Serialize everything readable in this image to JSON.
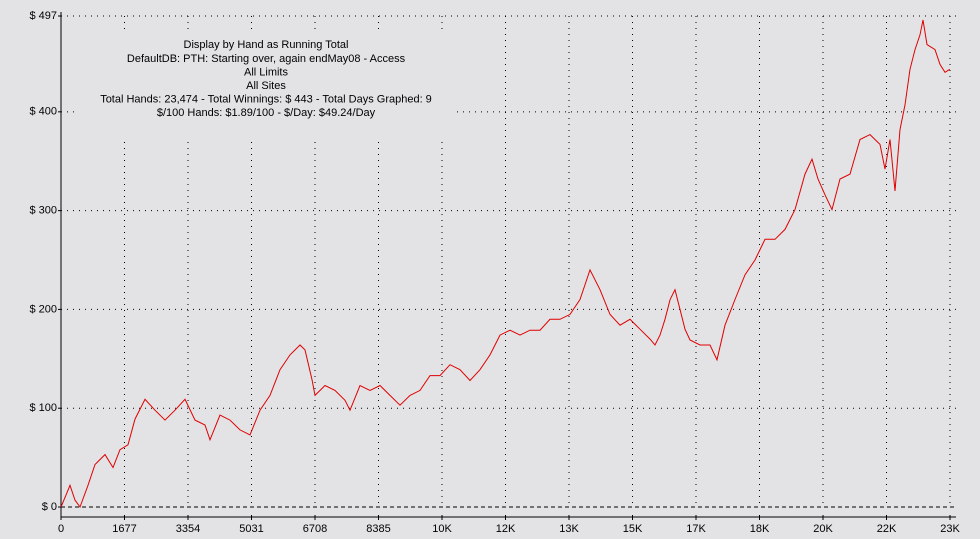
{
  "chart_data": {
    "type": "line",
    "title": "Display by Hand as Running Total",
    "annotations": [
      "DefaultDB: PTH: Starting over, again endMay08 - Access",
      "All Limits",
      "All Sites",
      "Total Hands: 23,474 - Total Winnings: $ 443 - Total Days Graphed: 9",
      "$/100 Hands: $1.89/100 - $/Day: $49.24/Day"
    ],
    "xlim": [
      0,
      23478
    ],
    "ylim": [
      0,
      497
    ],
    "xticks": [
      0,
      1677,
      3354,
      5031,
      6708,
      8385,
      {
        "value": 10062,
        "label": "10K"
      },
      {
        "value": 11739,
        "label": "12K"
      },
      {
        "value": 13416,
        "label": "13K"
      },
      {
        "value": 15093,
        "label": "15K"
      },
      {
        "value": 16770,
        "label": "17K"
      },
      {
        "value": 18447,
        "label": "18K"
      },
      {
        "value": 20124,
        "label": "20K"
      },
      {
        "value": 21801,
        "label": "22K"
      },
      {
        "value": 23478,
        "label": "23K"
      }
    ],
    "yticks": [
      {
        "value": 0,
        "label": "$ 0"
      },
      {
        "value": 100,
        "label": "$ 100"
      },
      {
        "value": 200,
        "label": "$ 200"
      },
      {
        "value": 300,
        "label": "$ 300"
      },
      {
        "value": 400,
        "label": "$ 400"
      },
      {
        "value": 497,
        "label": "$ 497"
      }
    ],
    "grid": true,
    "series": [
      {
        "color": "#e00000",
        "x": [
          0,
          132,
          238,
          370,
          502,
          713,
          898,
          1162,
          1373,
          1558,
          1769,
          1954,
          2218,
          2482,
          2747,
          3011,
          3275,
          3539,
          3803,
          3935,
          4199,
          4463,
          4727,
          4991,
          5256,
          5520,
          5784,
          6048,
          6312,
          6444,
          6629,
          6708,
          6972,
          7236,
          7500,
          7632,
          7896,
          8161,
          8425,
          8689,
          8953,
          9217,
          9481,
          9745,
          10009,
          10273,
          10537,
          10802,
          11066,
          11330,
          11594,
          11858,
          12122,
          12386,
          12650,
          12914,
          13178,
          13442,
          13707,
          13971,
          14235,
          14499,
          14763,
          15027,
          15291,
          15555,
          15687,
          15819,
          15951,
          16085,
          16215,
          16347,
          16479,
          16611,
          16875,
          17140,
          17325,
          17536,
          17800,
          18064,
          18328,
          18592,
          18856,
          19120,
          19385,
          19649,
          19834,
          19992,
          20177,
          20362,
          20573,
          20837,
          21101,
          21365,
          21630,
          21762,
          21894,
          22026,
          22158,
          22290,
          22422,
          22554,
          22686,
          22765,
          22871,
          23082,
          23214,
          23346,
          23474
        ],
        "values": [
          0,
          12,
          22,
          7,
          0,
          22,
          43,
          53,
          40,
          58,
          63,
          89,
          109,
          98,
          88,
          98,
          109,
          88,
          83,
          68,
          93,
          88,
          78,
          73,
          98,
          113,
          139,
          154,
          164,
          159,
          129,
          113,
          123,
          118,
          108,
          98,
          123,
          118,
          123,
          113,
          103,
          113,
          118,
          133,
          133,
          144,
          139,
          128,
          139,
          154,
          174,
          179,
          174,
          179,
          179,
          190,
          190,
          195,
          210,
          240,
          220,
          195,
          184,
          190,
          180,
          170,
          164,
          174,
          190,
          210,
          220,
          200,
          180,
          169,
          164,
          164,
          149,
          184,
          210,
          235,
          250,
          271,
          271,
          281,
          301,
          337,
          352,
          332,
          316,
          301,
          332,
          337,
          372,
          377,
          367,
          342,
          372,
          320,
          382,
          407,
          443,
          463,
          478,
          493,
          468,
          463,
          448,
          440,
          443
        ]
      }
    ]
  }
}
